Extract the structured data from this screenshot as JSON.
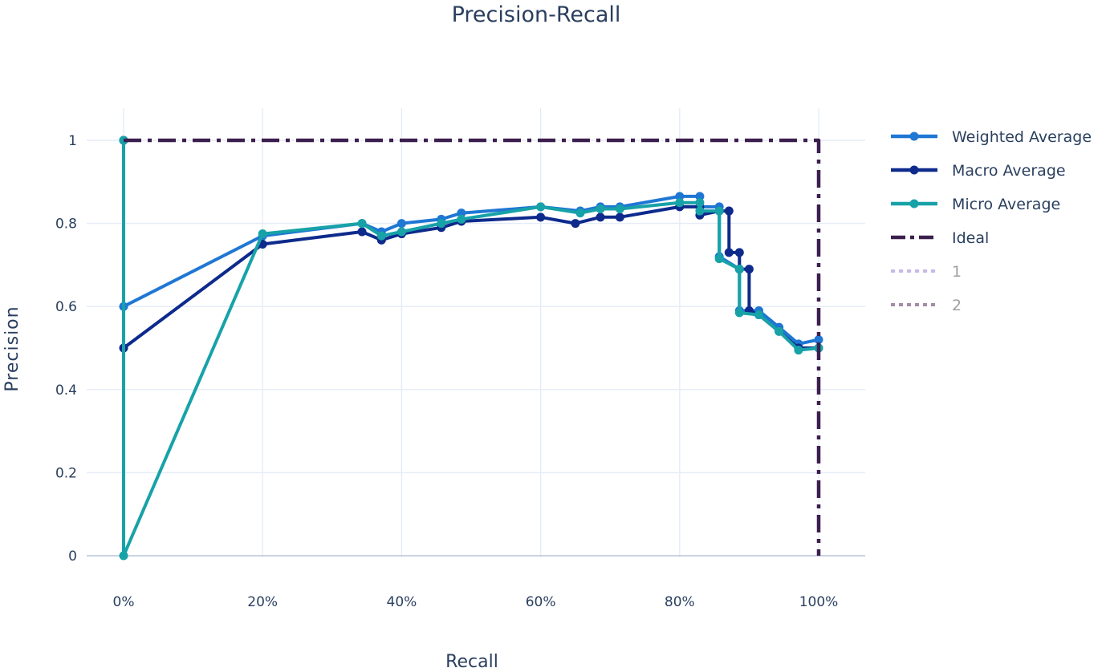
{
  "chart_data": {
    "type": "line",
    "title": "Precision-Recall",
    "xlabel": "Recall",
    "ylabel": "Precision",
    "xlim": [
      0,
      1
    ],
    "ylim": [
      0,
      1
    ],
    "x_ticks": [
      {
        "value": 0,
        "label": "0%"
      },
      {
        "value": 0.2,
        "label": "20%"
      },
      {
        "value": 0.4,
        "label": "40%"
      },
      {
        "value": 0.6,
        "label": "60%"
      },
      {
        "value": 0.8,
        "label": "80%"
      },
      {
        "value": 1.0,
        "label": "100%"
      }
    ],
    "y_ticks": [
      {
        "value": 0,
        "label": "0"
      },
      {
        "value": 0.2,
        "label": "0.2"
      },
      {
        "value": 0.4,
        "label": "0.4"
      },
      {
        "value": 0.6,
        "label": "0.6"
      },
      {
        "value": 0.8,
        "label": "0.8"
      },
      {
        "value": 1,
        "label": "1"
      }
    ],
    "grid": true,
    "legend_position": "right",
    "series": [
      {
        "name": "Weighted Average",
        "color": "#1f77d4",
        "dash": "solid",
        "markers": true,
        "muted": false,
        "x": [
          0,
          0,
          0.2,
          0.343,
          0.371,
          0.4,
          0.457,
          0.486,
          0.6,
          0.657,
          0.686,
          0.714,
          0.8,
          0.829,
          0.829,
          0.857,
          0.857,
          0.886,
          0.886,
          0.914,
          0.943,
          0.971,
          1.0
        ],
        "y": [
          1.0,
          0.6,
          0.77,
          0.8,
          0.78,
          0.8,
          0.81,
          0.825,
          0.84,
          0.83,
          0.84,
          0.84,
          0.865,
          0.865,
          0.84,
          0.84,
          0.72,
          0.69,
          0.59,
          0.59,
          0.55,
          0.51,
          0.52
        ]
      },
      {
        "name": "Macro Average",
        "color": "#0d2a8c",
        "dash": "solid",
        "markers": true,
        "muted": false,
        "x": [
          0,
          0,
          0.2,
          0.343,
          0.371,
          0.4,
          0.457,
          0.486,
          0.6,
          0.65,
          0.686,
          0.714,
          0.8,
          0.829,
          0.829,
          0.857,
          0.871,
          0.871,
          0.886,
          0.886,
          0.9,
          0.9,
          0.914,
          0.943,
          0.971,
          1.0
        ],
        "y": [
          1.0,
          0.5,
          0.75,
          0.78,
          0.76,
          0.775,
          0.79,
          0.805,
          0.815,
          0.8,
          0.815,
          0.815,
          0.84,
          0.84,
          0.82,
          0.83,
          0.83,
          0.73,
          0.73,
          0.69,
          0.69,
          0.59,
          0.58,
          0.54,
          0.5,
          0.5
        ]
      },
      {
        "name": "Micro Average",
        "color": "#17a2a8",
        "dash": "solid",
        "markers": true,
        "muted": false,
        "x": [
          0,
          0,
          0.2,
          0.343,
          0.371,
          0.4,
          0.457,
          0.486,
          0.6,
          0.657,
          0.686,
          0.714,
          0.8,
          0.829,
          0.829,
          0.857,
          0.857,
          0.886,
          0.886,
          0.914,
          0.943,
          0.971,
          1.0
        ],
        "y": [
          1.0,
          0.0,
          0.775,
          0.8,
          0.77,
          0.78,
          0.8,
          0.81,
          0.84,
          0.825,
          0.835,
          0.835,
          0.85,
          0.85,
          0.83,
          0.83,
          0.715,
          0.69,
          0.585,
          0.58,
          0.54,
          0.495,
          0.5
        ]
      },
      {
        "name": "Ideal",
        "color": "#3b1f4e",
        "dash": "dashdot",
        "markers": false,
        "muted": false,
        "x": [
          0,
          1,
          1
        ],
        "y": [
          1,
          1,
          0
        ]
      },
      {
        "name": "1",
        "color": "#c7b9e6",
        "dash": "dot",
        "markers": false,
        "muted": true,
        "x": [],
        "y": []
      },
      {
        "name": "2",
        "color": "#a68aa8",
        "dash": "dot",
        "markers": false,
        "muted": true,
        "x": [],
        "y": []
      }
    ],
    "muted_label_color": "#a0a0a0",
    "label_color": "#2a3f5f",
    "grid_color": "#e5ecf6",
    "zeroline_color": "#c9d3e3"
  }
}
